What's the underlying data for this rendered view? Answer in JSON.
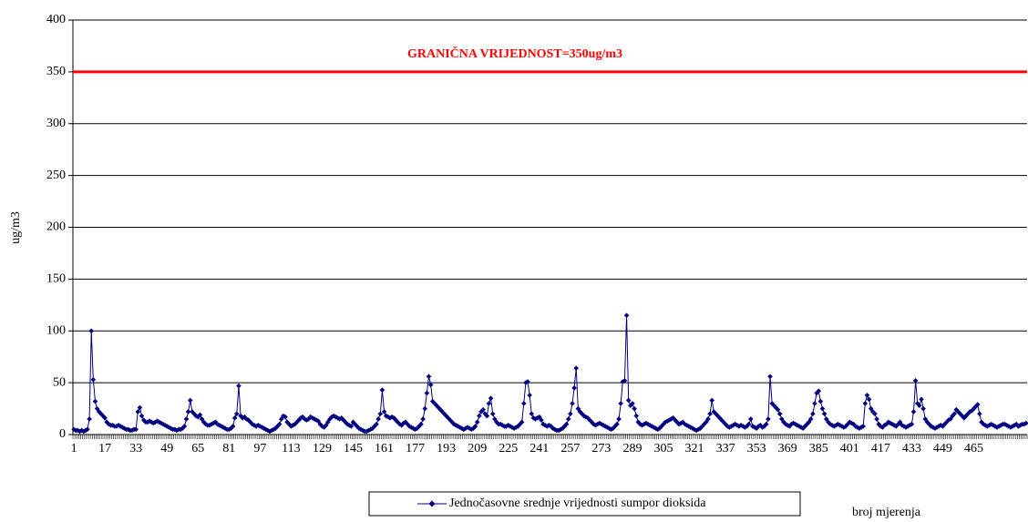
{
  "chart_data": {
    "type": "line",
    "y_label": "ug/m3",
    "x_label": "broj mjerenja",
    "threshold": {
      "value": 350,
      "label": "GRANIČNA VRIJEDNOST=350ug/m3",
      "color": "#ff0000"
    },
    "ylim": [
      0,
      400
    ],
    "yticks": [
      0,
      50,
      100,
      150,
      200,
      250,
      300,
      350,
      400
    ],
    "grid": true,
    "categories": [
      1,
      null,
      null,
      null,
      null,
      null,
      null,
      null,
      null,
      null,
      null,
      null,
      null,
      null,
      null,
      null,
      17,
      null,
      null,
      null,
      null,
      null,
      null,
      null,
      null,
      null,
      null,
      null,
      null,
      null,
      null,
      null,
      33,
      null,
      null,
      null,
      null,
      null,
      null,
      null,
      null,
      null,
      null,
      null,
      null,
      null,
      null,
      null,
      49,
      null,
      null,
      null,
      null,
      null,
      null,
      null,
      null,
      null,
      null,
      null,
      null,
      null,
      null,
      null,
      65,
      null,
      null,
      null,
      null,
      null,
      null,
      null,
      null,
      null,
      null,
      null,
      null,
      null,
      null,
      null,
      81,
      null,
      null,
      null,
      null,
      null,
      null,
      null,
      null,
      null,
      null,
      null,
      null,
      null,
      null,
      null,
      97,
      null,
      null,
      null,
      null,
      null,
      null,
      null,
      null,
      null,
      null,
      null,
      null,
      null,
      null,
      null,
      113,
      null,
      null,
      null,
      null,
      null,
      null,
      null,
      null,
      null,
      null,
      null,
      null,
      null,
      null,
      null,
      129,
      null,
      null,
      null,
      null,
      null,
      null,
      null,
      null,
      null,
      null,
      null,
      null,
      null,
      null,
      null,
      145,
      null,
      null,
      null,
      null,
      null,
      null,
      null,
      null,
      null,
      null,
      null,
      null,
      null,
      null,
      null,
      161,
      null,
      null,
      null,
      null,
      null,
      null,
      null,
      null,
      null,
      null,
      null,
      null,
      null,
      null,
      null,
      177,
      null,
      null,
      null,
      null,
      null,
      null,
      null,
      null,
      null,
      null,
      null,
      null,
      null,
      null,
      null,
      193,
      null,
      null,
      null,
      null,
      null,
      null,
      null,
      null,
      null,
      null,
      null,
      null,
      null,
      null,
      null,
      209,
      null,
      null,
      null,
      null,
      null,
      null,
      null,
      null,
      null,
      null,
      null,
      null,
      null,
      null,
      null,
      225,
      null,
      null,
      null,
      null,
      null,
      null,
      null,
      null,
      null,
      null,
      null,
      null,
      null,
      null,
      null,
      241,
      null,
      null,
      null,
      null,
      null,
      null,
      null,
      null,
      null,
      null,
      null,
      null,
      null,
      null,
      null,
      257,
      null,
      null,
      null,
      null,
      null,
      null,
      null,
      null,
      null,
      null,
      null,
      null,
      null,
      null,
      null,
      273,
      null,
      null,
      null,
      null,
      null,
      null,
      null,
      null,
      null,
      null,
      null,
      null,
      null,
      null,
      null,
      289,
      null,
      null,
      null,
      null,
      null,
      null,
      null,
      null,
      null,
      null,
      null,
      null,
      null,
      null,
      null,
      305,
      null,
      null,
      null,
      null,
      null,
      null,
      null,
      null,
      null,
      null,
      null,
      null,
      null,
      null,
      null,
      321,
      null,
      null,
      null,
      null,
      null,
      null,
      null,
      null,
      null,
      null,
      null,
      null,
      null,
      null,
      null,
      337,
      null,
      null,
      null,
      null,
      null,
      null,
      null,
      null,
      null,
      null,
      null,
      null,
      null,
      null,
      null,
      353,
      null,
      null,
      null,
      null,
      null,
      null,
      null,
      null,
      null,
      null,
      null,
      null,
      null,
      null,
      null,
      369,
      null,
      null,
      null,
      null,
      null,
      null,
      null,
      null,
      null,
      null,
      null,
      null,
      null,
      null,
      null,
      385,
      null,
      null,
      null,
      null,
      null,
      null,
      null,
      null,
      null,
      null,
      null,
      null,
      null,
      null,
      null,
      401,
      null,
      null,
      null,
      null,
      null,
      null,
      null,
      null,
      null,
      null,
      null,
      null,
      null,
      null,
      null,
      417,
      null,
      null,
      null,
      null,
      null,
      null,
      null,
      null,
      null,
      null,
      null,
      null,
      null,
      null,
      null,
      433,
      null,
      null,
      null,
      null,
      null,
      null,
      null,
      null,
      null,
      null,
      null,
      null,
      null,
      null,
      null,
      449,
      null,
      null,
      null,
      null,
      null,
      null,
      null,
      null,
      null,
      null,
      null,
      null,
      null,
      null,
      null,
      465,
      null,
      null,
      null,
      null,
      null,
      null,
      null,
      null,
      null,
      null,
      null,
      null,
      null,
      null,
      null,
      null,
      null,
      null,
      null,
      null,
      null,
      null,
      null,
      null,
      null,
      null,
      null
    ],
    "series": [
      {
        "name": "Jednočasovne srednje vrijednosti sumpor dioksida",
        "color": "#000080",
        "values": [
          5,
          4,
          4,
          3,
          4,
          3,
          4,
          5,
          15,
          100,
          53,
          32,
          25,
          22,
          20,
          18,
          16,
          12,
          10,
          9,
          9,
          8,
          8,
          9,
          8,
          7,
          6,
          5,
          5,
          4,
          4,
          5,
          5,
          22,
          26,
          18,
          14,
          12,
          12,
          13,
          12,
          11,
          12,
          13,
          12,
          11,
          10,
          9,
          8,
          7,
          6,
          5,
          5,
          4,
          5,
          5,
          6,
          8,
          15,
          22,
          33,
          22,
          20,
          18,
          17,
          19,
          15,
          12,
          10,
          9,
          9,
          10,
          11,
          12,
          10,
          9,
          8,
          7,
          6,
          5,
          5,
          6,
          8,
          16,
          20,
          47,
          18,
          16,
          17,
          15,
          14,
          12,
          10,
          9,
          8,
          9,
          8,
          7,
          6,
          5,
          4,
          3,
          4,
          5,
          6,
          8,
          10,
          15,
          18,
          17,
          12,
          10,
          8,
          9,
          10,
          12,
          14,
          16,
          17,
          15,
          14,
          15,
          17,
          16,
          15,
          14,
          13,
          10,
          8,
          7,
          9,
          12,
          15,
          17,
          18,
          17,
          16,
          15,
          16,
          14,
          12,
          10,
          9,
          8,
          12,
          10,
          8,
          6,
          5,
          4,
          3,
          3,
          4,
          5,
          6,
          8,
          10,
          15,
          20,
          43,
          22,
          18,
          17,
          16,
          17,
          16,
          14,
          12,
          10,
          9,
          11,
          12,
          10,
          8,
          7,
          6,
          5,
          6,
          8,
          10,
          15,
          25,
          40,
          56,
          48,
          32,
          30,
          28,
          26,
          24,
          22,
          20,
          18,
          16,
          14,
          12,
          10,
          9,
          8,
          7,
          6,
          5,
          6,
          7,
          6,
          5,
          6,
          8,
          12,
          18,
          22,
          24,
          20,
          18,
          30,
          35,
          20,
          15,
          12,
          10,
          10,
          9,
          8,
          8,
          9,
          8,
          7,
          6,
          7,
          8,
          10,
          12,
          30,
          50,
          51,
          38,
          20,
          16,
          15,
          16,
          17,
          14,
          10,
          9,
          8,
          9,
          8,
          6,
          5,
          4,
          4,
          5,
          6,
          8,
          10,
          15,
          20,
          30,
          45,
          64,
          25,
          22,
          20,
          18,
          17,
          16,
          14,
          12,
          10,
          9,
          10,
          11,
          10,
          9,
          8,
          7,
          6,
          5,
          6,
          8,
          10,
          15,
          30,
          51,
          52,
          115,
          33,
          28,
          30,
          25,
          18,
          12,
          10,
          9,
          10,
          11,
          10,
          9,
          8,
          7,
          6,
          5,
          6,
          8,
          10,
          12,
          13,
          14,
          15,
          16,
          14,
          12,
          10,
          11,
          12,
          10,
          9,
          8,
          7,
          6,
          5,
          4,
          5,
          6,
          8,
          10,
          12,
          15,
          20,
          33,
          22,
          20,
          18,
          16,
          14,
          12,
          10,
          8,
          7,
          8,
          9,
          10,
          9,
          8,
          9,
          8,
          7,
          8,
          10,
          15,
          8,
          7,
          6,
          8,
          9,
          7,
          8,
          10,
          15,
          56,
          30,
          28,
          26,
          24,
          20,
          15,
          12,
          10,
          9,
          8,
          10,
          11,
          10,
          9,
          8,
          7,
          6,
          8,
          10,
          12,
          15,
          20,
          30,
          40,
          42,
          32,
          25,
          20,
          15,
          12,
          10,
          9,
          8,
          9,
          10,
          9,
          8,
          7,
          8,
          10,
          12,
          11,
          10,
          8,
          7,
          6,
          7,
          8,
          30,
          38,
          34,
          25,
          22,
          20,
          15,
          10,
          8,
          7,
          9,
          10,
          12,
          11,
          10,
          9,
          8,
          10,
          12,
          9,
          8,
          7,
          8,
          9,
          10,
          22,
          52,
          30,
          28,
          34,
          25,
          15,
          12,
          10,
          8,
          7,
          6,
          7,
          8,
          9,
          8,
          10,
          12,
          14,
          15,
          18,
          20,
          24,
          22,
          20,
          18,
          16,
          18,
          20,
          22,
          23,
          25,
          27,
          29,
          20,
          12,
          10,
          9,
          8,
          9,
          10,
          9,
          8,
          7,
          8,
          9,
          10,
          10,
          9,
          8,
          7,
          8,
          9,
          10,
          8,
          9,
          10,
          10,
          11
        ]
      }
    ]
  }
}
